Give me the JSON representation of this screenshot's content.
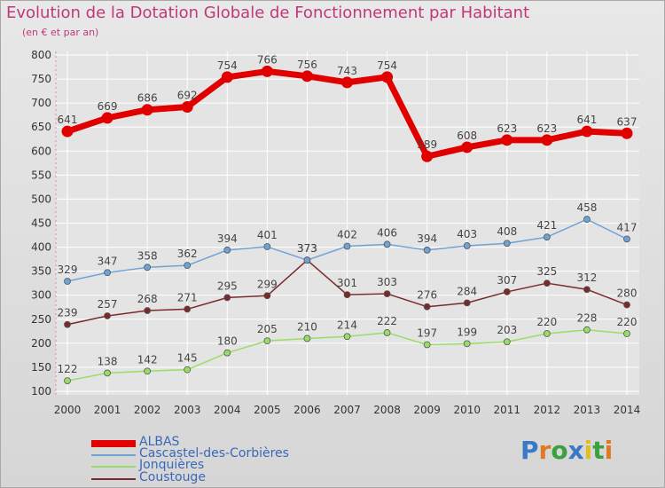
{
  "title": "Evolution de la Dotation Globale de Fonctionnement par Habitant",
  "subtitle": "(en € et par an)",
  "logo": "Proxiti",
  "colors": {
    "title": "#c0387a",
    "axis_text": "#c0387a",
    "legend_text": "#3a68b8",
    "grid": "#ffffff",
    "plot_bg": "#e4e4e4"
  },
  "chart_data": {
    "type": "line",
    "x": [
      2000,
      2001,
      2002,
      2003,
      2004,
      2005,
      2006,
      2007,
      2008,
      2009,
      2010,
      2011,
      2012,
      2013,
      2014
    ],
    "ylim": [
      100,
      800
    ],
    "yticks": [
      100,
      150,
      200,
      250,
      300,
      350,
      400,
      450,
      500,
      550,
      600,
      650,
      700,
      750,
      800
    ],
    "grid": true,
    "legend_position": "bottom-left",
    "series": [
      {
        "name": "ALBAS",
        "color": "#e00000",
        "values": [
          641,
          669,
          686,
          692,
          754,
          766,
          756,
          743,
          754,
          589,
          608,
          623,
          623,
          641,
          637
        ]
      },
      {
        "name": "Cascastel-des-Corbières",
        "color": "#6fa3d8",
        "values": [
          329,
          347,
          358,
          362,
          394,
          401,
          373,
          402,
          406,
          394,
          403,
          408,
          421,
          458,
          417
        ]
      },
      {
        "name": "Jonquières",
        "color": "#99dd66",
        "values": [
          122,
          138,
          142,
          145,
          180,
          205,
          210,
          214,
          222,
          197,
          199,
          203,
          220,
          228,
          220
        ]
      },
      {
        "name": "Coustouge",
        "color": "#7a2a2a",
        "values": [
          239,
          257,
          268,
          271,
          295,
          299,
          373,
          301,
          303,
          276,
          284,
          307,
          325,
          312,
          280
        ]
      }
    ]
  }
}
